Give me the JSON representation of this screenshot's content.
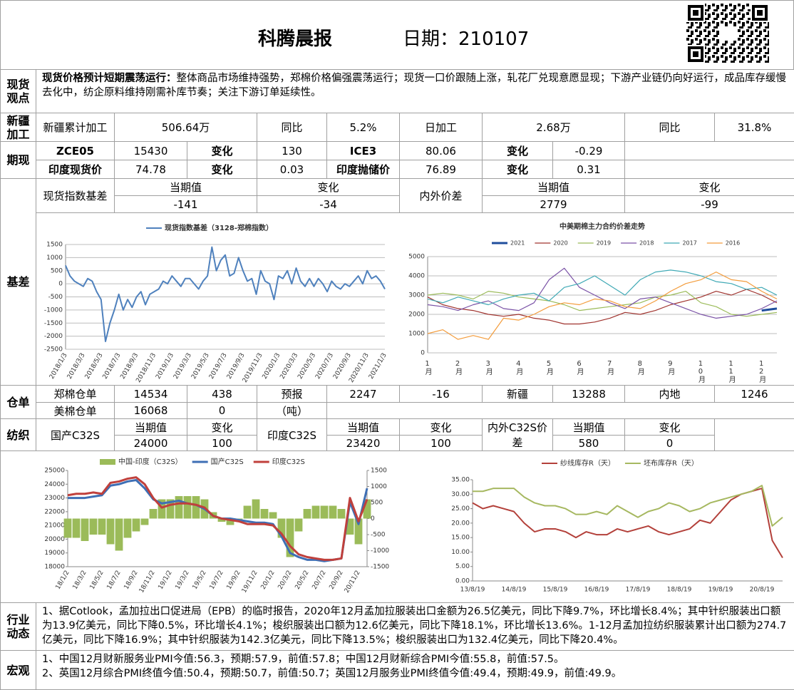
{
  "header": {
    "title": "科腾晨报",
    "date": "日期：210107"
  },
  "spot_view": {
    "label": "现货观点",
    "lead": "现货价格预计短期震荡运行：",
    "text": "整体商品市场维持强势，郑棉价格偏强震荡运行；现货一口价跟随上涨，轧花厂兑现意愿显现；下游产业链仍向好运行，成品库存缓慢去化中，纺企原料维持刚需补库节奏；关注下游订单延续性。"
  },
  "xinjiang": {
    "label": "新疆加工",
    "cells": [
      "新疆累计加工",
      "506.64万",
      "同比",
      "5.2%",
      "日加工",
      "2.68万",
      "同比",
      "31.8%"
    ]
  },
  "futures": {
    "label": "期现",
    "rows": [
      [
        "ZCE05",
        "15430",
        "变化",
        "130",
        "ICE3",
        "80.06",
        "变化",
        "-0.29"
      ],
      [
        "印度现货价",
        "74.78",
        "变化",
        "0.03",
        "印度抛储价",
        "76.89",
        "变化",
        "0.31"
      ]
    ]
  },
  "basis": {
    "label": "基差",
    "cells": [
      "现货指数基差",
      "当期值",
      "变化",
      "-141",
      "-34",
      "内外价差",
      "当期值",
      "变化",
      "2779",
      "-99"
    ]
  },
  "warehouse": {
    "label": "仓单",
    "cells": [
      "郑棉仓单",
      "14534",
      "438",
      "预报",
      "2247",
      "-16",
      "新疆",
      "13288",
      "内地",
      "1246",
      "美棉仓单",
      "16068",
      "0",
      "（吨）"
    ]
  },
  "textile": {
    "label": "纺织",
    "cells": [
      "国产C32S",
      "当期值",
      "变化",
      "24000",
      "100",
      "印度C32S",
      "当期值",
      "变化",
      "23420",
      "100",
      "内外C32S价差",
      "当期值",
      "变化",
      "580",
      "0"
    ]
  },
  "industry": {
    "label": "行业动态",
    "text": "1、据Cotlook，孟加拉出口促进局（EPB）的临时报告，2020年12月孟加拉服装出口金额为26.5亿美元，同比下降9.7%，环比增长8.4%；其中针织服装出口额为13.9亿美元，同比下降0.5%，环比增长4.1%；梭织服装出口额为12.6亿美元，同比下降18.1%，环比增长13.6%。1-12月孟加拉纺织服装累计出口额为274.7亿美元，同比下降16.9%；其中针织服装为142.3亿美元，同比下降13.5%；梭织服装出口为132.4亿美元，同比下降20.4%。"
  },
  "macro": {
    "label": "宏观",
    "lines": [
      "1、中国12月财新服务业PMI今值:56.3，预期:57.9，前值:57.8；中国12月财新综合PMI今值:55.8，前值:57.5。",
      "2、英国12月综合PMI终值今值:50.4，预期:50.7，前值:50.7；英国12月服务业PMI终值今值:49.4，预期:49.9，前值:49.9。"
    ]
  },
  "chart_data": [
    {
      "type": "line",
      "grid": true,
      "categories": [
        "2018/1/3",
        null,
        null,
        null,
        "2018/3/3",
        null,
        null,
        null,
        "2018/5/3",
        null,
        null,
        null,
        "2018/7/3",
        null,
        null,
        null,
        "2018/9/3",
        null,
        null,
        null,
        "2018/11/3",
        null,
        null,
        null,
        "2019/1/3",
        null,
        null,
        null,
        "2019/3/3",
        null,
        null,
        null,
        "2019/5/3",
        null,
        null,
        null,
        "2019/7/3",
        null,
        null,
        null,
        "2019/9/3",
        null,
        null,
        null,
        "2019/11/3",
        null,
        null,
        null,
        "2020/1/3",
        null,
        null,
        null,
        "2020/3/3",
        null,
        null,
        null,
        "2020/5/3",
        null,
        null,
        null,
        "2020/7/3",
        null,
        null,
        null,
        "2020/9/3",
        null,
        null,
        null,
        "2020/11/3",
        null,
        null,
        null,
        "2021/1/3"
      ],
      "series": [
        {
          "name": "现货指数基差（3128-郑棉指数）",
          "color": "#4f81bd",
          "values": [
            700,
            300,
            100,
            0,
            -100,
            200,
            100,
            -300,
            -600,
            -2200,
            -1500,
            -1000,
            -400,
            -1000,
            -600,
            -900,
            -500,
            -300,
            -800,
            -400,
            -300,
            -200,
            100,
            0,
            300,
            100,
            -100,
            200,
            200,
            0,
            -200,
            100,
            300,
            1400,
            500,
            900,
            1100,
            300,
            400,
            1000,
            500,
            100,
            200,
            -400,
            500,
            100,
            0,
            -600,
            300,
            200,
            500,
            0,
            600,
            100,
            -100,
            200,
            -100,
            200,
            0,
            -300,
            100,
            -100,
            -200,
            0,
            -100,
            100,
            300,
            0,
            500,
            200,
            300,
            100,
            -200
          ]
        }
      ],
      "ylim": [
        -2500,
        1500
      ],
      "yticks": [
        -2500,
        -2000,
        -1500,
        -1000,
        -500,
        0,
        500,
        1000,
        1500
      ]
    },
    {
      "type": "line",
      "grid": true,
      "title": "中美期棉主力合约价差走势",
      "categories": [
        "1月",
        null,
        "2月",
        null,
        "3月",
        null,
        "4月",
        null,
        "5月",
        null,
        "6月",
        null,
        "7月",
        null,
        "8月",
        null,
        "9月",
        null,
        "10月",
        null,
        "11月",
        null,
        "12月",
        null
      ],
      "series": [
        {
          "name": "2021",
          "color": "#1f4e9c",
          "values": [
            null,
            null,
            null,
            null,
            null,
            null,
            null,
            null,
            null,
            null,
            null,
            null,
            null,
            null,
            null,
            null,
            null,
            null,
            null,
            null,
            null,
            null,
            2200,
            2300
          ]
        },
        {
          "name": "2020",
          "color": "#a0332e",
          "values": [
            2900,
            2500,
            2300,
            2200,
            2000,
            1900,
            2000,
            1800,
            1700,
            1500,
            1500,
            1600,
            1800,
            2100,
            2000,
            2200,
            2500,
            2700,
            2900,
            3200,
            3000,
            3300,
            3000,
            2600
          ]
        },
        {
          "name": "2019",
          "color": "#9bbb59",
          "values": [
            3000,
            3100,
            3000,
            2800,
            3200,
            3100,
            2900,
            2800,
            2700,
            2500,
            2200,
            2300,
            2400,
            2500,
            2600,
            2900,
            3000,
            3200,
            2600,
            2400,
            2000,
            1900,
            2000,
            2100
          ]
        },
        {
          "name": "2018",
          "color": "#7a52a6",
          "values": [
            2500,
            2400,
            2200,
            2500,
            2700,
            2300,
            2200,
            2600,
            3800,
            4400,
            3400,
            3000,
            2600,
            2300,
            2800,
            2900,
            2600,
            2300,
            2000,
            1800,
            1900,
            2000,
            2300,
            2700
          ]
        },
        {
          "name": "2017",
          "color": "#3fa9b5",
          "values": [
            2800,
            2600,
            2900,
            2700,
            2500,
            2800,
            3000,
            3100,
            2700,
            3400,
            3600,
            4000,
            3500,
            3000,
            3800,
            4200,
            4300,
            4200,
            4000,
            3700,
            3600,
            3300,
            3400,
            3000
          ]
        },
        {
          "name": "2016",
          "color": "#f39c3c",
          "values": [
            1000,
            1200,
            700,
            900,
            700,
            1800,
            1700,
            2000,
            2400,
            2600,
            2500,
            2800,
            2700,
            2400,
            2300,
            2700,
            3200,
            3600,
            3800,
            4200,
            3800,
            3700,
            3200,
            2800
          ]
        }
      ],
      "ylim": [
        0,
        5000
      ],
      "yticks": [
        0,
        1000,
        2000,
        3000,
        4000,
        5000
      ]
    },
    {
      "type": "combo",
      "grid": false,
      "categories": [
        "18/1/2",
        null,
        "18/3/2",
        null,
        "18/5/2",
        null,
        "18/7/2",
        null,
        "18/9/2",
        null,
        "18/11/2",
        null,
        "19/1/2",
        null,
        "19/3/2",
        null,
        "19/5/2",
        null,
        "19/7/2",
        null,
        "19/9/2",
        null,
        "19/11/2",
        null,
        "20/1/2",
        null,
        "20/3/2",
        null,
        "20/5/2",
        null,
        "20/7/2",
        null,
        "20/9/2",
        null,
        "20/11/2",
        null
      ],
      "series": [
        {
          "name": "中国-印度（C32S）",
          "type": "bar",
          "axis": "y2",
          "color": "#9bbb59",
          "values": [
            -600,
            -600,
            -700,
            -500,
            -500,
            -800,
            -1000,
            -600,
            -400,
            -200,
            300,
            600,
            600,
            700,
            700,
            700,
            600,
            200,
            -100,
            -200,
            -100,
            400,
            600,
            300,
            200,
            -600,
            -1200,
            -400,
            300,
            400,
            400,
            400,
            300,
            -500,
            -800,
            600
          ]
        },
        {
          "name": "国产C32S",
          "color": "#3e6fb5",
          "values": [
            23000,
            23000,
            23000,
            23100,
            23200,
            23900,
            24000,
            24200,
            24300,
            23700,
            22900,
            22600,
            22700,
            22800,
            22600,
            22500,
            22200,
            21700,
            21500,
            21500,
            21400,
            21300,
            21200,
            21200,
            21100,
            20200,
            19000,
            18700,
            18500,
            18500,
            18400,
            18500,
            18600,
            22700,
            21100,
            23700
          ]
        },
        {
          "name": "印度C32S",
          "color": "#c0403c",
          "values": [
            23200,
            23300,
            23300,
            23400,
            23300,
            24100,
            24200,
            24400,
            24500,
            24000,
            23000,
            22300,
            22500,
            22600,
            22600,
            22500,
            22300,
            21700,
            21500,
            21400,
            21300,
            21100,
            21100,
            21100,
            21000,
            20400,
            19500,
            18900,
            18700,
            18600,
            18500,
            18500,
            18600,
            23000,
            21300,
            22900
          ]
        }
      ],
      "ylim": [
        18000,
        25000
      ],
      "yticks": [
        18000,
        19000,
        20000,
        21000,
        22000,
        23000,
        24000,
        25000
      ],
      "y2lim": [
        -1500,
        1500
      ],
      "y2ticks": [
        -1500,
        -1000,
        -500,
        0,
        500,
        1000,
        1500
      ]
    },
    {
      "type": "line",
      "grid": false,
      "categories": [
        "13/8/19",
        null,
        null,
        null,
        "14/8/19",
        null,
        null,
        null,
        "15/8/19",
        null,
        null,
        null,
        "16/8/19",
        null,
        null,
        null,
        "17/8/19",
        null,
        null,
        null,
        "18/8/19",
        null,
        null,
        null,
        "19/8/19",
        null,
        null,
        null,
        "20/8/19",
        null,
        null
      ],
      "series": [
        {
          "name": "纱线库存R（天）",
          "color": "#b3403a",
          "values": [
            27,
            25,
            26,
            25,
            24,
            20,
            17,
            18,
            18,
            17,
            15,
            17,
            16,
            16,
            18,
            17,
            18,
            19,
            17,
            16,
            17,
            18,
            21,
            20,
            24,
            28,
            30,
            31,
            32,
            14,
            8
          ]
        },
        {
          "name": "坯布库存R（天）",
          "color": "#a6b860",
          "values": [
            31,
            31,
            32,
            32,
            32,
            29,
            27,
            26,
            26,
            25,
            23,
            23,
            24,
            23,
            26,
            24,
            22,
            24,
            25,
            27,
            26,
            24,
            25,
            27,
            28,
            29,
            30,
            31,
            33,
            19,
            22
          ]
        }
      ],
      "ylim": [
        0,
        35
      ],
      "yticks": [
        {
          "value": 0,
          "label": "0.00"
        },
        {
          "value": 5,
          "label": "5.00"
        },
        {
          "value": 10,
          "label": "10.00"
        },
        {
          "value": 15,
          "label": "15.00"
        },
        {
          "value": 20,
          "label": "20.00"
        },
        {
          "value": 25,
          "label": "25.00"
        },
        {
          "value": 30,
          "label": "30.00"
        },
        {
          "value": 35,
          "label": "35.00"
        }
      ]
    }
  ]
}
